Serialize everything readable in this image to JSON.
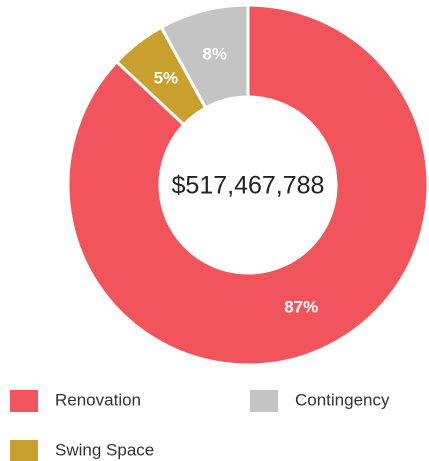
{
  "chart_data": {
    "type": "pie",
    "donut": true,
    "center_label": "$517,467,788",
    "categories": [
      "Renovation",
      "Swing Space",
      "Contingency"
    ],
    "values": [
      87,
      5,
      8
    ],
    "value_labels": [
      "87%",
      "5%",
      "8%"
    ],
    "colors": [
      "#f2545b",
      "#c9a02d",
      "#c4c4c4"
    ],
    "legend": "bottom"
  }
}
